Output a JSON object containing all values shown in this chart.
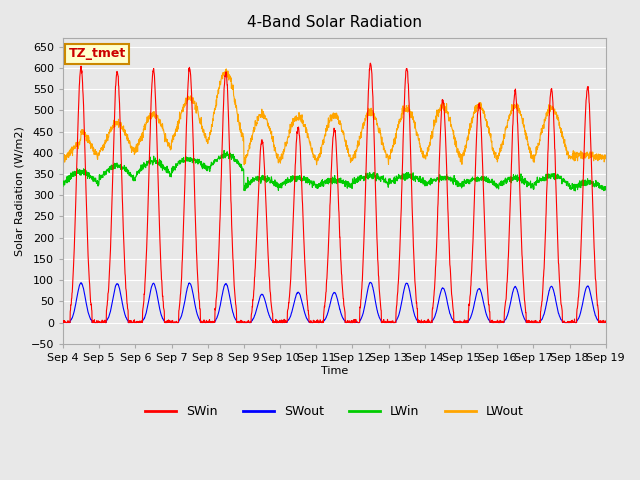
{
  "title": "4-Band Solar Radiation",
  "ylabel": "Solar Radiation (W/m2)",
  "xlabel": "Time",
  "ylim": [
    -50,
    670
  ],
  "yticks": [
    -50,
    0,
    50,
    100,
    150,
    200,
    250,
    300,
    350,
    400,
    450,
    500,
    550,
    600,
    650
  ],
  "bg_color": "#e8e8e8",
  "plot_bg_color": "#e8e8e8",
  "grid_color": "#ffffff",
  "annotation_text": "TZ_tmet",
  "annotation_bg": "#ffffcc",
  "annotation_border": "#cc8800",
  "annotation_text_color": "#cc0000",
  "colors": {
    "SWin": "#ff0000",
    "SWout": "#0000ff",
    "LWin": "#00cc00",
    "LWout": "#ffa500"
  },
  "x_tick_labels": [
    "Sep 4",
    "Sep 5",
    "Sep 6",
    "Sep 7",
    "Sep 8",
    "Sep 9",
    "Sep 10",
    "Sep 11",
    "Sep 12",
    "Sep 13",
    "Sep 14",
    "Sep 15",
    "Sep 16",
    "Sep 17",
    "Sep 18",
    "Sep 19"
  ],
  "n_days": 15,
  "points_per_day": 144
}
